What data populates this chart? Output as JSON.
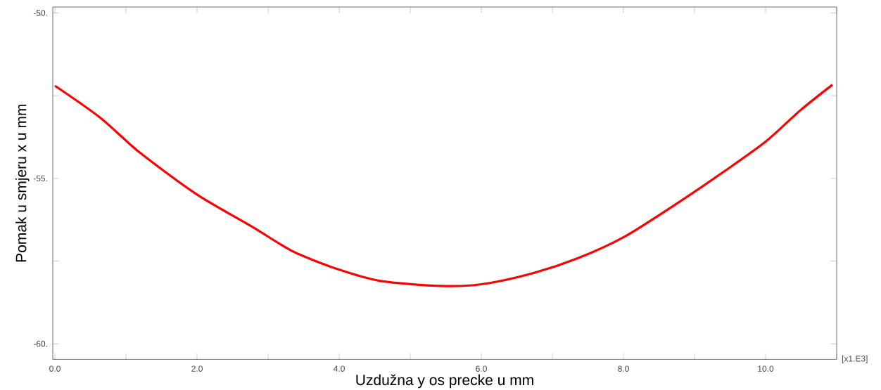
{
  "chart_data": {
    "type": "line",
    "xlabel": "Uzdužna y os precke u mm",
    "ylabel": "Pomak u smjeru x u mm",
    "annotations": [
      "[x1.E3]"
    ],
    "x": [
      0,
      0.64,
      1.2,
      2.0,
      2.75,
      3.18,
      3.41,
      4.0,
      4.58,
      5.43,
      6.0,
      6.7,
      7.35,
      8.0,
      8.73,
      9.43,
      10.0,
      10.49,
      10.94
    ],
    "series": [
      {
        "color": "#ff0000",
        "values": [
          -52.2,
          -53.17,
          -54.23,
          -55.49,
          -56.43,
          -57.0,
          -57.27,
          -57.76,
          -58.1,
          -58.25,
          -58.2,
          -57.88,
          -57.42,
          -56.78,
          -55.79,
          -54.77,
          -53.89,
          -52.94,
          -52.17
        ]
      }
    ],
    "marker": "none",
    "xlim": [
      -0.03,
      11.0
    ],
    "ylim": [
      -60.47,
      -49.82
    ],
    "xticks": [
      {
        "value": 0,
        "label": "0.0"
      },
      {
        "value": 1,
        "label": null
      },
      {
        "value": 2,
        "label": "2.0"
      },
      {
        "value": 3,
        "label": null
      },
      {
        "value": 4,
        "label": "4.0"
      },
      {
        "value": 5,
        "label": null
      },
      {
        "value": 6,
        "label": "6.0"
      },
      {
        "value": 7,
        "label": null
      },
      {
        "value": 8,
        "label": "8.0"
      },
      {
        "value": 9,
        "label": null
      },
      {
        "value": 10,
        "label": "10.0"
      },
      {
        "value": 11,
        "label": null
      }
    ],
    "yticks": [
      {
        "value": -60,
        "label": "-60."
      },
      {
        "value": -57.5,
        "label": null
      },
      {
        "value": -55,
        "label": "-55."
      },
      {
        "value": -52.5,
        "label": null
      },
      {
        "value": -50,
        "label": "-50."
      }
    ]
  }
}
